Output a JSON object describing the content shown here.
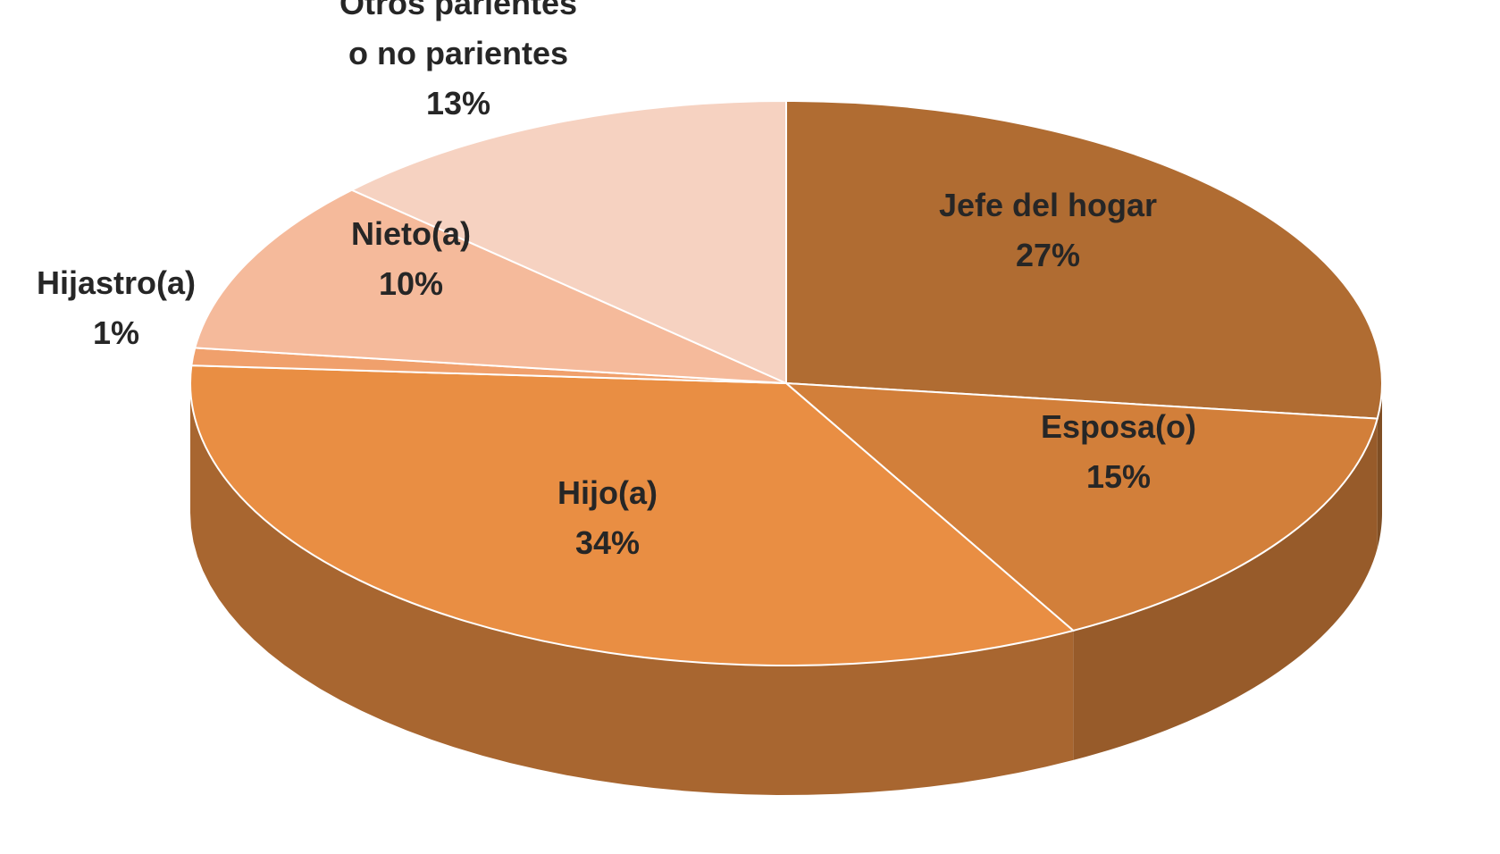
{
  "chart_data": {
    "type": "pie",
    "categories": [
      "Jefe del hogar",
      "Esposa(o)",
      "Hijo(a)",
      "Hijastro(a)",
      "Nieto(a)",
      "Otros parientes\no no parientes"
    ],
    "values": [
      27,
      15,
      34,
      1,
      10,
      13
    ],
    "value_labels": [
      "27%",
      "15%",
      "34%",
      "1%",
      "10%",
      "13%"
    ],
    "colors": [
      "#b06c32",
      "#d27f3a",
      "#e98e43",
      "#f0a06c",
      "#f5ba9b",
      "#f6d2c1"
    ]
  }
}
